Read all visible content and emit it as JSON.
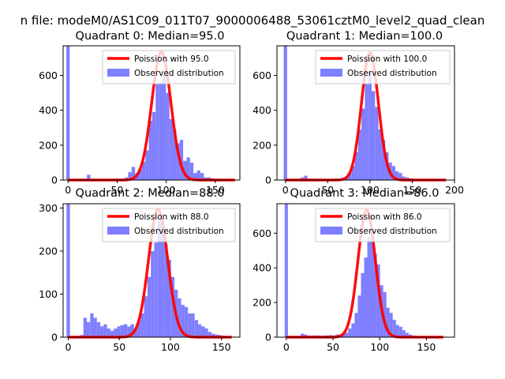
{
  "figure": {
    "suptitle": "n file: modeM0/AS1C09_011T07_9000006488_53061cztM0_level2_quad_clean"
  },
  "colors": {
    "hist": "#7f7fff",
    "poisson": "#ff0000",
    "axes": "#000000"
  },
  "chart_data": [
    {
      "type": "bar",
      "panel": "q0",
      "title": "Quadrant 0: Median=95.0",
      "xlim": [
        -5,
        175
      ],
      "ylim": [
        0,
        770
      ],
      "xticks": [
        0,
        50,
        100,
        150
      ],
      "yticks": [
        0,
        200,
        400,
        600
      ],
      "bin_width": 3.5,
      "bins": [
        [
          -1.75,
          770
        ],
        [
          1.75,
          5
        ],
        [
          5.25,
          4
        ],
        [
          8.75,
          3
        ],
        [
          12.25,
          3
        ],
        [
          15.75,
          4
        ],
        [
          19.25,
          30
        ],
        [
          22.75,
          6
        ],
        [
          26.25,
          5
        ],
        [
          29.75,
          4
        ],
        [
          33.25,
          4
        ],
        [
          36.75,
          4
        ],
        [
          40.25,
          5
        ],
        [
          43.75,
          4
        ],
        [
          47.25,
          8
        ],
        [
          50.75,
          5
        ],
        [
          54.25,
          8
        ],
        [
          57.75,
          15
        ],
        [
          61.25,
          45
        ],
        [
          64.75,
          75
        ],
        [
          68.25,
          38
        ],
        [
          71.75,
          60
        ],
        [
          75.25,
          105
        ],
        [
          78.75,
          170
        ],
        [
          82.25,
          340
        ],
        [
          85.75,
          390
        ],
        [
          89.25,
          550
        ],
        [
          92.75,
          560
        ],
        [
          96.25,
          600
        ],
        [
          99.75,
          500
        ],
        [
          103.25,
          350
        ],
        [
          106.75,
          290
        ],
        [
          110.25,
          210
        ],
        [
          113.75,
          230
        ],
        [
          117.25,
          110
        ],
        [
          120.75,
          130
        ],
        [
          124.25,
          100
        ],
        [
          127.75,
          40
        ],
        [
          131.25,
          55
        ],
        [
          134.75,
          40
        ],
        [
          138.25,
          15
        ],
        [
          141.75,
          15
        ],
        [
          145.25,
          10
        ],
        [
          148.75,
          6
        ],
        [
          152.25,
          4
        ],
        [
          155.75,
          3
        ],
        [
          159.25,
          2
        ],
        [
          162.75,
          2
        ],
        [
          166.25,
          1
        ]
      ],
      "series": [
        {
          "name": "Poission with 95.0",
          "mean": 95.0,
          "x_range": [
            0,
            170
          ],
          "peak": 735
        }
      ],
      "legend": {
        "entries": [
          "Poission with 95.0",
          "Observed distribution"
        ],
        "position": "top-right"
      }
    },
    {
      "type": "bar",
      "panel": "q1",
      "title": "Quadrant 1: Median=100.0",
      "xlim": [
        -10,
        200
      ],
      "ylim": [
        0,
        770
      ],
      "xticks": [
        0,
        50,
        100,
        150,
        200
      ],
      "yticks": [
        0,
        200,
        400,
        600
      ],
      "bin_width": 4.0,
      "bins": [
        [
          -2,
          770
        ],
        [
          2,
          5
        ],
        [
          6,
          4
        ],
        [
          10,
          3
        ],
        [
          14,
          5
        ],
        [
          18,
          15
        ],
        [
          22,
          25
        ],
        [
          26,
          8
        ],
        [
          30,
          5
        ],
        [
          34,
          4
        ],
        [
          38,
          4
        ],
        [
          42,
          4
        ],
        [
          46,
          5
        ],
        [
          50,
          5
        ],
        [
          54,
          6
        ],
        [
          58,
          8
        ],
        [
          62,
          8
        ],
        [
          66,
          15
        ],
        [
          70,
          15
        ],
        [
          74,
          40
        ],
        [
          78,
          80
        ],
        [
          82,
          160
        ],
        [
          86,
          290
        ],
        [
          90,
          410
        ],
        [
          94,
          550
        ],
        [
          98,
          620
        ],
        [
          102,
          510
        ],
        [
          106,
          420
        ],
        [
          110,
          290
        ],
        [
          114,
          230
        ],
        [
          118,
          160
        ],
        [
          122,
          100
        ],
        [
          126,
          80
        ],
        [
          130,
          50
        ],
        [
          134,
          40
        ],
        [
          138,
          20
        ],
        [
          142,
          15
        ],
        [
          146,
          10
        ],
        [
          150,
          6
        ],
        [
          154,
          4
        ],
        [
          158,
          3
        ],
        [
          162,
          3
        ],
        [
          166,
          2
        ],
        [
          170,
          2
        ],
        [
          174,
          2
        ],
        [
          178,
          1
        ],
        [
          182,
          1
        ],
        [
          186,
          1
        ]
      ],
      "series": [
        {
          "name": "Poission with 100.0",
          "mean": 100.0,
          "x_range": [
            0,
            190
          ],
          "peak": 730
        }
      ],
      "legend": {
        "entries": [
          "Poission with 100.0",
          "Observed distribution"
        ],
        "position": "top-right"
      }
    },
    {
      "type": "bar",
      "panel": "q2",
      "title": "Quadrant 2: Median=88.0",
      "xlim": [
        -5,
        168
      ],
      "ylim": [
        0,
        310
      ],
      "xticks": [
        0,
        50,
        100,
        150
      ],
      "yticks": [
        0,
        100,
        200,
        300
      ],
      "bin_width": 3.3,
      "bins": [
        [
          -1.65,
          310
        ],
        [
          1.65,
          2
        ],
        [
          4.95,
          1
        ],
        [
          8.25,
          3
        ],
        [
          11.55,
          5
        ],
        [
          14.85,
          45
        ],
        [
          18.15,
          35
        ],
        [
          21.45,
          55
        ],
        [
          24.75,
          45
        ],
        [
          28.05,
          35
        ],
        [
          31.35,
          25
        ],
        [
          34.65,
          30
        ],
        [
          37.95,
          20
        ],
        [
          41.25,
          15
        ],
        [
          44.55,
          20
        ],
        [
          47.85,
          25
        ],
        [
          51.15,
          28
        ],
        [
          54.45,
          30
        ],
        [
          57.75,
          25
        ],
        [
          61.05,
          30
        ],
        [
          64.35,
          20
        ],
        [
          67.65,
          40
        ],
        [
          70.95,
          55
        ],
        [
          74.25,
          95
        ],
        [
          77.55,
          140
        ],
        [
          80.85,
          200
        ],
        [
          84.15,
          220
        ],
        [
          87.45,
          270
        ],
        [
          90.75,
          265
        ],
        [
          94.05,
          215
        ],
        [
          97.35,
          180
        ],
        [
          100.65,
          140
        ],
        [
          103.95,
          110
        ],
        [
          107.25,
          90
        ],
        [
          110.55,
          75
        ],
        [
          113.85,
          70
        ],
        [
          117.15,
          55
        ],
        [
          120.45,
          55
        ],
        [
          123.75,
          40
        ],
        [
          127.05,
          30
        ],
        [
          130.35,
          25
        ],
        [
          133.65,
          20
        ],
        [
          136.95,
          12
        ],
        [
          140.25,
          8
        ],
        [
          143.55,
          6
        ],
        [
          146.85,
          5
        ],
        [
          150.15,
          3
        ],
        [
          153.45,
          2
        ],
        [
          156.75,
          2
        ],
        [
          160.05,
          1
        ]
      ],
      "series": [
        {
          "name": "Poission with 88.0",
          "mean": 88.0,
          "x_range": [
            0,
            160
          ],
          "peak": 297
        }
      ],
      "legend": {
        "entries": [
          "Poission with 88.0",
          "Observed distribution"
        ],
        "position": "top-right"
      }
    },
    {
      "type": "bar",
      "panel": "q3",
      "title": "Quadrant 3: Median=86.0",
      "xlim": [
        -10,
        180
      ],
      "ylim": [
        0,
        770
      ],
      "xticks": [
        0,
        50,
        100,
        150
      ],
      "yticks": [
        0,
        200,
        400,
        600
      ],
      "bin_width": 3.4,
      "bins": [
        [
          -1.7,
          770
        ],
        [
          1.7,
          4
        ],
        [
          5.1,
          3
        ],
        [
          8.5,
          3
        ],
        [
          11.9,
          3
        ],
        [
          15.3,
          20
        ],
        [
          18.7,
          15
        ],
        [
          22.1,
          10
        ],
        [
          25.5,
          8
        ],
        [
          28.9,
          10
        ],
        [
          32.3,
          10
        ],
        [
          35.7,
          8
        ],
        [
          39.1,
          8
        ],
        [
          42.5,
          10
        ],
        [
          45.9,
          12
        ],
        [
          49.3,
          10
        ],
        [
          52.7,
          15
        ],
        [
          56.1,
          15
        ],
        [
          59.5,
          20
        ],
        [
          62.9,
          25
        ],
        [
          66.3,
          50
        ],
        [
          69.7,
          80
        ],
        [
          73.1,
          140
        ],
        [
          76.5,
          240
        ],
        [
          79.9,
          370
        ],
        [
          83.3,
          460
        ],
        [
          86.7,
          580
        ],
        [
          90.1,
          560
        ],
        [
          93.5,
          480
        ],
        [
          96.9,
          420
        ],
        [
          100.3,
          300
        ],
        [
          103.7,
          260
        ],
        [
          107.1,
          170
        ],
        [
          110.5,
          140
        ],
        [
          113.9,
          100
        ],
        [
          117.3,
          70
        ],
        [
          120.7,
          60
        ],
        [
          124.1,
          40
        ],
        [
          127.5,
          25
        ],
        [
          130.9,
          15
        ],
        [
          134.3,
          10
        ],
        [
          137.7,
          6
        ],
        [
          141.1,
          5
        ],
        [
          144.5,
          3
        ],
        [
          147.9,
          2
        ],
        [
          151.3,
          2
        ],
        [
          154.7,
          1
        ],
        [
          158.1,
          1
        ]
      ],
      "series": [
        {
          "name": "Poission with 86.0",
          "mean": 86.0,
          "x_range": [
            0,
            168
          ],
          "peak": 735
        }
      ],
      "legend": {
        "entries": [
          "Poission with 86.0",
          "Observed distribution"
        ],
        "position": "top-right"
      }
    }
  ]
}
